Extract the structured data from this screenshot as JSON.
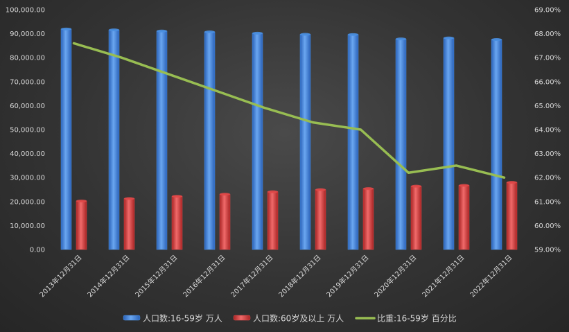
{
  "chart_data": {
    "type": "bar",
    "categories": [
      "2013年12月31日",
      "2014年12月31日",
      "2015年12月31日",
      "2016年12月31日",
      "2017年12月31日",
      "2018年12月31日",
      "2019年12月31日",
      "2020年12月31日",
      "2021年12月31日",
      "2022年12月31日"
    ],
    "series": [
      {
        "name": "人口数:16-59岁 万人",
        "type": "bar",
        "axis": "left",
        "color": "#4a8fe0",
        "values": [
          91954,
          91583,
          91096,
          90747,
          90199,
          89729,
          89640,
          87810,
          88222,
          87556
        ]
      },
      {
        "name": "人口数:60岁及以上 万人",
        "type": "bar",
        "axis": "left",
        "color": "#e04848",
        "values": [
          20243,
          21242,
          22200,
          23086,
          24090,
          24949,
          25388,
          26402,
          26736,
          28004
        ]
      },
      {
        "name": "比重:16-59岁 百分比",
        "type": "line",
        "axis": "right",
        "color": "#98bd52",
        "values": [
          67.6,
          67.0,
          66.3,
          65.6,
          64.9,
          64.3,
          64.0,
          62.2,
          62.5,
          62.0
        ]
      }
    ],
    "left_axis": {
      "min": 0,
      "max": 100000,
      "step": 10000,
      "tick_labels": [
        "0.00",
        "10,000.00",
        "20,000.00",
        "30,000.00",
        "40,000.00",
        "50,000.00",
        "60,000.00",
        "70,000.00",
        "80,000.00",
        "90,000.00",
        "100,000.00"
      ]
    },
    "right_axis": {
      "min": 59,
      "max": 69,
      "step": 1,
      "tick_labels": [
        "59.00%",
        "60.00%",
        "61.00%",
        "62.00%",
        "63.00%",
        "64.00%",
        "65.00%",
        "66.00%",
        "67.00%",
        "68.00%",
        "69.00%"
      ]
    },
    "grid": false,
    "legend_position": "bottom"
  }
}
